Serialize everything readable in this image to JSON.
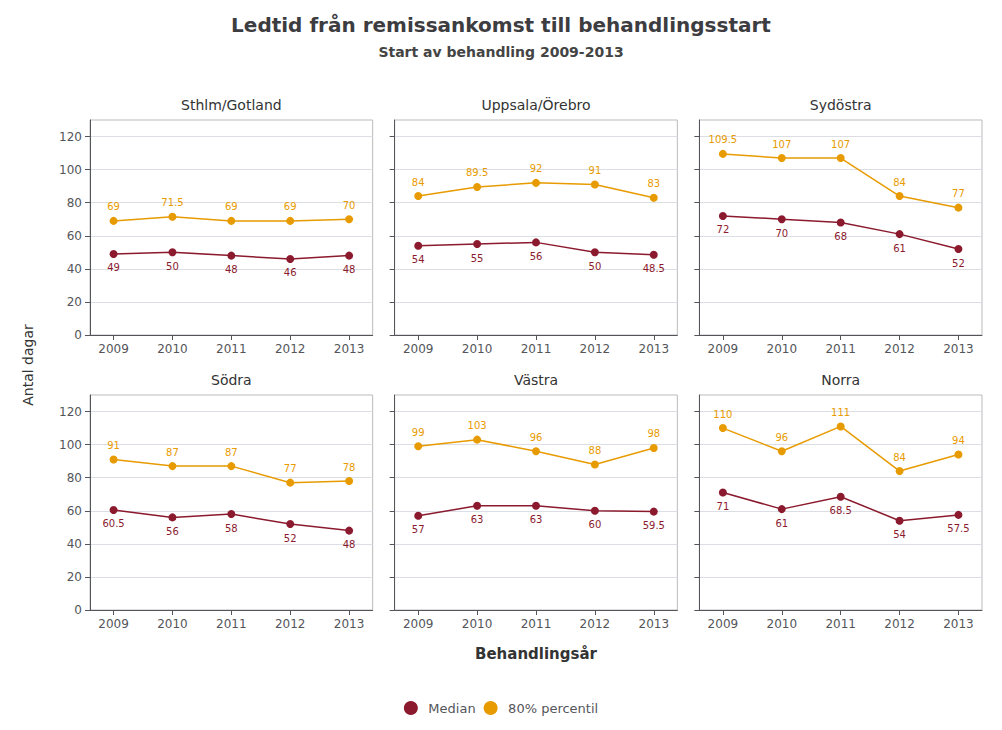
{
  "title": "Ledtid från remissankomst till behandlingsstart",
  "subtitle": "Start av behandling 2009-2013",
  "xlabel": "Behandlingsår",
  "ylabel": "Antal dagar",
  "chart_data": [
    {
      "type": "line",
      "title": "Sthlm/Gotland",
      "x": [
        2009,
        2010,
        2011,
        2012,
        2013
      ],
      "series": [
        {
          "name": "Median",
          "color": "#8b1a2e",
          "values": [
            49,
            50,
            48,
            46,
            48
          ]
        },
        {
          "name": "80% percentil",
          "color": "#e89b00",
          "values": [
            69,
            71.5,
            69,
            69,
            70
          ]
        }
      ],
      "xlim": [
        2008.6,
        2013.4
      ],
      "xticks": [
        2009,
        2010,
        2011,
        2012,
        2013
      ],
      "ylim": [
        0,
        130
      ],
      "yticks": [
        0,
        20,
        40,
        60,
        80,
        100,
        120
      ],
      "grid": true,
      "legend": "bottom",
      "data_labels": true,
      "marker": "circle"
    },
    {
      "type": "line",
      "title": "Uppsala/Örebro",
      "x": [
        2009,
        2010,
        2011,
        2012,
        2013
      ],
      "series": [
        {
          "name": "Median",
          "color": "#8b1a2e",
          "values": [
            54,
            55,
            56,
            50,
            48.5
          ]
        },
        {
          "name": "80% percentil",
          "color": "#e89b00",
          "values": [
            84,
            89.5,
            92,
            91,
            83
          ]
        }
      ],
      "xlim": [
        2008.6,
        2013.4
      ],
      "xticks": [
        2009,
        2010,
        2011,
        2012,
        2013
      ],
      "ylim": [
        0,
        130
      ],
      "yticks": [
        0,
        20,
        40,
        60,
        80,
        100,
        120
      ],
      "grid": true,
      "legend": "bottom",
      "data_labels": true,
      "marker": "circle",
      "tick_labels": "x"
    },
    {
      "type": "line",
      "title": "Sydöstra",
      "x": [
        2009,
        2010,
        2011,
        2012,
        2013
      ],
      "series": [
        {
          "name": "Median",
          "color": "#8b1a2e",
          "values": [
            72,
            70,
            68,
            61,
            52
          ]
        },
        {
          "name": "80% percentil",
          "color": "#e89b00",
          "values": [
            109.5,
            107,
            107,
            84,
            77
          ]
        }
      ],
      "xlim": [
        2008.6,
        2013.4
      ],
      "xticks": [
        2009,
        2010,
        2011,
        2012,
        2013
      ],
      "ylim": [
        0,
        130
      ],
      "yticks": [
        0,
        20,
        40,
        60,
        80,
        100,
        120
      ],
      "grid": true,
      "legend": "bottom",
      "data_labels": true,
      "marker": "circle",
      "tick_labels": "x"
    },
    {
      "type": "line",
      "title": "Södra",
      "x": [
        2009,
        2010,
        2011,
        2012,
        2013
      ],
      "series": [
        {
          "name": "Median",
          "color": "#8b1a2e",
          "values": [
            60.5,
            56,
            58,
            52,
            48
          ]
        },
        {
          "name": "80% percentil",
          "color": "#e89b00",
          "values": [
            91,
            87,
            87,
            77,
            78
          ]
        }
      ],
      "xlim": [
        2008.6,
        2013.4
      ],
      "xticks": [
        2009,
        2010,
        2011,
        2012,
        2013
      ],
      "ylim": [
        0,
        130
      ],
      "yticks": [
        0,
        20,
        40,
        60,
        80,
        100,
        120
      ],
      "grid": true,
      "legend": "bottom",
      "data_labels": true,
      "marker": "circle"
    },
    {
      "type": "line",
      "title": "Västra",
      "x": [
        2009,
        2010,
        2011,
        2012,
        2013
      ],
      "series": [
        {
          "name": "Median",
          "color": "#8b1a2e",
          "values": [
            57,
            63,
            63,
            60,
            59.5
          ]
        },
        {
          "name": "80% percentil",
          "color": "#e89b00",
          "values": [
            99,
            103,
            96,
            88,
            98
          ]
        }
      ],
      "xlim": [
        2008.6,
        2013.4
      ],
      "xticks": [
        2009,
        2010,
        2011,
        2012,
        2013
      ],
      "ylim": [
        0,
        130
      ],
      "yticks": [
        0,
        20,
        40,
        60,
        80,
        100,
        120
      ],
      "grid": true,
      "legend": "bottom",
      "data_labels": true,
      "marker": "circle",
      "tick_labels": "x"
    },
    {
      "type": "line",
      "title": "Norra",
      "x": [
        2009,
        2010,
        2011,
        2012,
        2013
      ],
      "series": [
        {
          "name": "Median",
          "color": "#8b1a2e",
          "values": [
            71,
            61,
            68.5,
            54,
            57.5
          ]
        },
        {
          "name": "80% percentil",
          "color": "#e89b00",
          "values": [
            110,
            96,
            111,
            84,
            94
          ]
        }
      ],
      "xlim": [
        2008.6,
        2013.4
      ],
      "xticks": [
        2009,
        2010,
        2011,
        2012,
        2013
      ],
      "ylim": [
        0,
        130
      ],
      "yticks": [
        0,
        20,
        40,
        60,
        80,
        100,
        120
      ],
      "grid": true,
      "legend": "bottom",
      "data_labels": true,
      "marker": "circle",
      "tick_labels": "x"
    }
  ]
}
